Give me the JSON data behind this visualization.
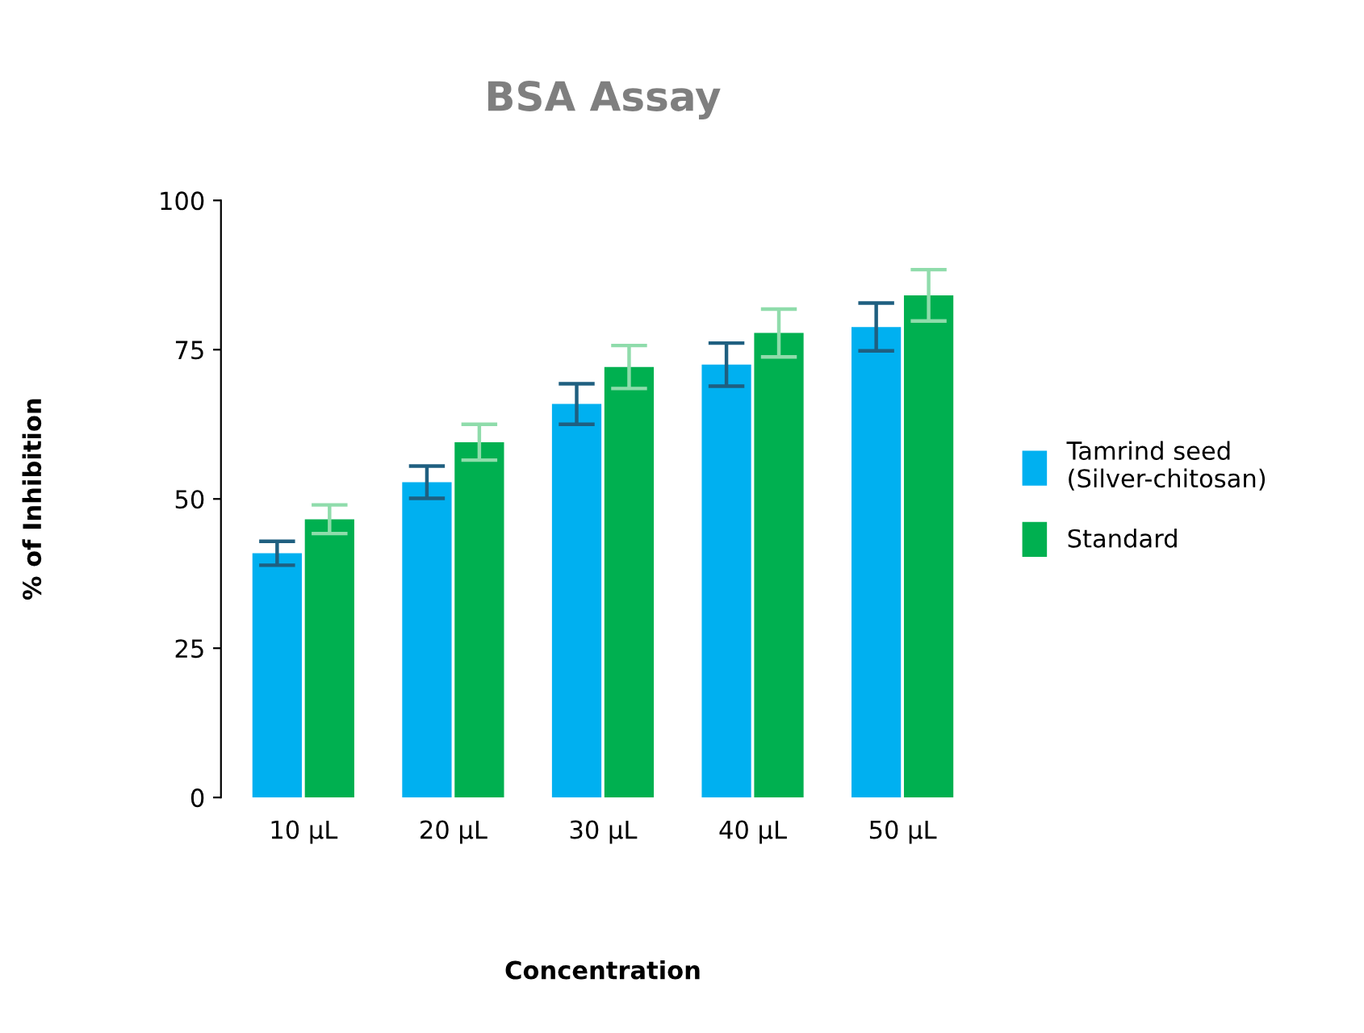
{
  "chart_data": {
    "type": "bar",
    "title": "BSA Assay",
    "xlabel": "Concentration",
    "ylabel": "% of Inhibition",
    "categories": [
      "10 µL",
      "20 µL",
      "30 µL",
      "40 µL",
      "50 µL"
    ],
    "series": [
      {
        "name": "Tamrind seed\n(Silver-chitosan)",
        "color": "#00b0f0",
        "values": [
          40.9,
          52.8,
          65.9,
          72.5,
          78.8
        ],
        "errors": [
          2.0,
          2.7,
          3.4,
          3.6,
          4.0
        ]
      },
      {
        "name": "Standard",
        "color": "#00b050",
        "values": [
          46.6,
          59.5,
          72.1,
          77.8,
          84.1
        ],
        "errors": [
          2.4,
          3.0,
          3.6,
          4.0,
          4.3
        ]
      }
    ],
    "ylim": [
      0,
      100
    ],
    "yticks": [
      0,
      25,
      50,
      75,
      100
    ],
    "grid": false,
    "legend": "right"
  }
}
